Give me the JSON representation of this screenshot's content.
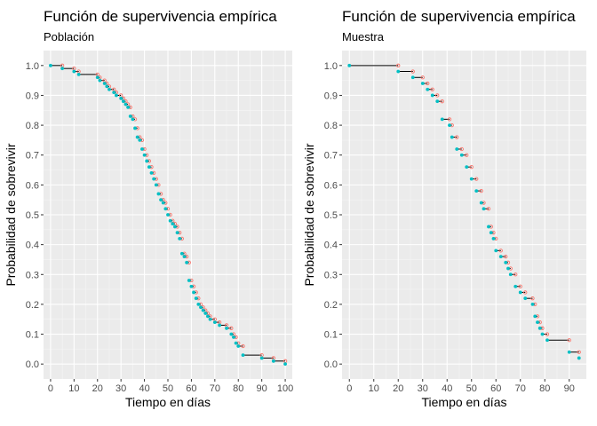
{
  "colors": {
    "panel_bg": "#ebebeb",
    "grid_major": "#ffffff",
    "grid_minor": "#f5f5f5",
    "step_line": "#000000",
    "open_point": "#f8766d",
    "filled_point": "#00bfc4",
    "tick": "#333333",
    "tick_label": "#4d4d4d"
  },
  "chart_data": [
    {
      "type": "step",
      "title": "Función de supervivencia empírica",
      "subtitle": "Población",
      "xlabel": "Tiempo en días",
      "ylabel": "Probabilidad de sobrevivir",
      "xlim": [
        -3,
        103
      ],
      "ylim": [
        -0.05,
        1.05
      ],
      "xticks": [
        0,
        10,
        20,
        30,
        40,
        50,
        60,
        70,
        80,
        90,
        100
      ],
      "yticks": [
        0.0,
        0.1,
        0.2,
        0.3,
        0.4,
        0.5,
        0.6,
        0.7,
        0.8,
        0.9,
        1.0
      ],
      "grid": true,
      "x": [
        0,
        5,
        10,
        12,
        20,
        21,
        23,
        24,
        25,
        27,
        28,
        30,
        31,
        32,
        33,
        34,
        35,
        36,
        37,
        38,
        39,
        40,
        41,
        42,
        43,
        44,
        45,
        46,
        47,
        48,
        49,
        50,
        51,
        52,
        53,
        54,
        55,
        56,
        57,
        58,
        59,
        60,
        61,
        62,
        63,
        64,
        65,
        66,
        67,
        68,
        70,
        72,
        75,
        77,
        78,
        79,
        80,
        82,
        90,
        95,
        100
      ],
      "y": [
        1.0,
        0.99,
        0.98,
        0.97,
        0.96,
        0.95,
        0.94,
        0.93,
        0.92,
        0.91,
        0.9,
        0.89,
        0.88,
        0.87,
        0.86,
        0.83,
        0.82,
        0.79,
        0.76,
        0.75,
        0.72,
        0.7,
        0.68,
        0.66,
        0.64,
        0.62,
        0.6,
        0.57,
        0.55,
        0.54,
        0.52,
        0.5,
        0.48,
        0.47,
        0.46,
        0.44,
        0.42,
        0.37,
        0.36,
        0.34,
        0.28,
        0.26,
        0.24,
        0.22,
        0.2,
        0.19,
        0.18,
        0.17,
        0.16,
        0.15,
        0.14,
        0.13,
        0.12,
        0.1,
        0.09,
        0.07,
        0.06,
        0.03,
        0.02,
        0.01,
        0.0
      ]
    },
    {
      "type": "step",
      "title": "Función de supervivencia empírica",
      "subtitle": "Muestra",
      "xlabel": "Tiempo en días",
      "ylabel": "Probabilidad de sobrevivir",
      "xlim": [
        -3,
        97
      ],
      "ylim": [
        -0.05,
        1.05
      ],
      "xticks": [
        0,
        10,
        20,
        30,
        40,
        50,
        60,
        70,
        80,
        90
      ],
      "yticks": [
        0.0,
        0.1,
        0.2,
        0.3,
        0.4,
        0.5,
        0.6,
        0.7,
        0.8,
        0.9,
        1.0
      ],
      "grid": true,
      "x": [
        0,
        20,
        26,
        30,
        32,
        34,
        36,
        38,
        41,
        42,
        44,
        46,
        48,
        50,
        52,
        54,
        55,
        57,
        58,
        59,
        60,
        62,
        64,
        65,
        66,
        68,
        70,
        72,
        75,
        76,
        77,
        78,
        79,
        81,
        90,
        94
      ],
      "y": [
        1.0,
        0.98,
        0.96,
        0.94,
        0.92,
        0.9,
        0.88,
        0.82,
        0.8,
        0.76,
        0.72,
        0.7,
        0.66,
        0.62,
        0.58,
        0.54,
        0.52,
        0.46,
        0.44,
        0.42,
        0.38,
        0.36,
        0.34,
        0.32,
        0.3,
        0.26,
        0.24,
        0.22,
        0.2,
        0.16,
        0.14,
        0.12,
        0.1,
        0.08,
        0.04,
        0.02
      ]
    }
  ]
}
